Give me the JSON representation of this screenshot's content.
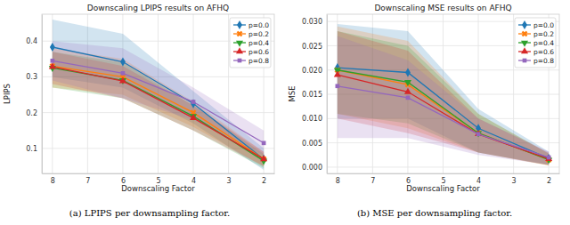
{
  "chart_data": [
    {
      "type": "line",
      "title": "Downscaling LPIPS results on AFHQ",
      "caption": "(a) LPIPS per downsampling factor.",
      "x_label": "Downscaling Factor",
      "y_label": "LPIPS",
      "x": [
        8,
        6,
        4,
        2
      ],
      "xlim": [
        8.3,
        1.7
      ],
      "xticks": [
        8,
        7,
        6,
        5,
        4,
        3,
        2
      ],
      "ylim": [
        0.03,
        0.475
      ],
      "yticks": [
        0.1,
        0.2,
        0.3,
        0.4
      ],
      "grid": true,
      "legend": "upper right",
      "series": [
        {
          "name": "p=0.0",
          "color": "#1f77b4",
          "marker": "diamond",
          "values": [
            0.383,
            0.342,
            0.225,
            0.07
          ],
          "lower": [
            0.3,
            0.27,
            0.17,
            0.04
          ],
          "upper": [
            0.46,
            0.42,
            0.26,
            0.1
          ]
        },
        {
          "name": "p=0.2",
          "color": "#ff7f0e",
          "marker": "x",
          "values": [
            0.33,
            0.3,
            0.2,
            0.07
          ],
          "lower": [
            0.27,
            0.25,
            0.16,
            0.05
          ],
          "upper": [
            0.38,
            0.35,
            0.23,
            0.09
          ]
        },
        {
          "name": "p=0.4",
          "color": "#2ca02c",
          "marker": "triangle-down",
          "values": [
            0.325,
            0.29,
            0.19,
            0.065
          ],
          "lower": [
            0.27,
            0.24,
            0.15,
            0.045
          ],
          "upper": [
            0.37,
            0.34,
            0.22,
            0.085
          ]
        },
        {
          "name": "p=0.6",
          "color": "#d62728",
          "marker": "triangle-up",
          "values": [
            0.328,
            0.288,
            0.185,
            0.07
          ],
          "lower": [
            0.28,
            0.24,
            0.15,
            0.05
          ],
          "upper": [
            0.37,
            0.33,
            0.22,
            0.09
          ]
        },
        {
          "name": "p=0.8",
          "color": "#9467bd",
          "marker": "square",
          "values": [
            0.345,
            0.31,
            0.23,
            0.115
          ],
          "lower": [
            0.29,
            0.24,
            0.18,
            0.08
          ],
          "upper": [
            0.4,
            0.38,
            0.27,
            0.15
          ]
        }
      ]
    },
    {
      "type": "line",
      "title": "Downscaling MSE results on AFHQ",
      "caption": "(b) MSE per downsampling factor.",
      "x_label": "Downscaling Factor",
      "y_label": "MSE",
      "x": [
        8,
        6,
        4,
        2
      ],
      "xlim": [
        8.3,
        1.7
      ],
      "xticks": [
        8,
        7,
        6,
        5,
        4,
        3,
        2
      ],
      "ylim": [
        -0.0013,
        0.0315
      ],
      "yticks": [
        {
          "value": 0,
          "label": "0.000"
        },
        {
          "value": 0.005,
          "label": "0.005"
        },
        {
          "value": 0.01,
          "label": "0.010"
        },
        {
          "value": 0.015,
          "label": "0.015"
        },
        {
          "value": 0.02,
          "label": "0.020"
        },
        {
          "value": 0.025,
          "label": "0.025"
        },
        {
          "value": 0.03,
          "label": "0.030"
        }
      ],
      "grid": true,
      "legend": "upper right",
      "series": [
        {
          "name": "p=0.0",
          "color": "#1f77b4",
          "marker": "diamond",
          "values": [
            0.0205,
            0.0195,
            0.008,
            0.0018
          ],
          "lower": [
            0.01,
            0.01,
            0.003,
            0.0005
          ],
          "upper": [
            0.0295,
            0.028,
            0.012,
            0.0032
          ]
        },
        {
          "name": "p=0.2",
          "color": "#ff7f0e",
          "marker": "x",
          "values": [
            0.02,
            0.017,
            0.007,
            0.0015
          ],
          "lower": [
            0.011,
            0.008,
            0.003,
            0.0003
          ],
          "upper": [
            0.029,
            0.026,
            0.011,
            0.0028
          ]
        },
        {
          "name": "p=0.4",
          "color": "#2ca02c",
          "marker": "triangle-down",
          "values": [
            0.02,
            0.0175,
            0.007,
            0.0015
          ],
          "lower": [
            0.011,
            0.009,
            0.003,
            0.0004
          ],
          "upper": [
            0.028,
            0.025,
            0.011,
            0.0028
          ]
        },
        {
          "name": "p=0.6",
          "color": "#d62728",
          "marker": "triangle-up",
          "values": [
            0.019,
            0.0155,
            0.0068,
            0.0017
          ],
          "lower": [
            0.01,
            0.007,
            0.003,
            0.0004
          ],
          "upper": [
            0.028,
            0.024,
            0.01,
            0.003
          ]
        },
        {
          "name": "p=0.8",
          "color": "#9467bd",
          "marker": "square",
          "values": [
            0.0167,
            0.0143,
            0.0068,
            0.002
          ],
          "lower": [
            0.006,
            0.006,
            0.0025,
            0.0005
          ],
          "upper": [
            0.027,
            0.022,
            0.01,
            0.0032
          ]
        }
      ]
    }
  ]
}
